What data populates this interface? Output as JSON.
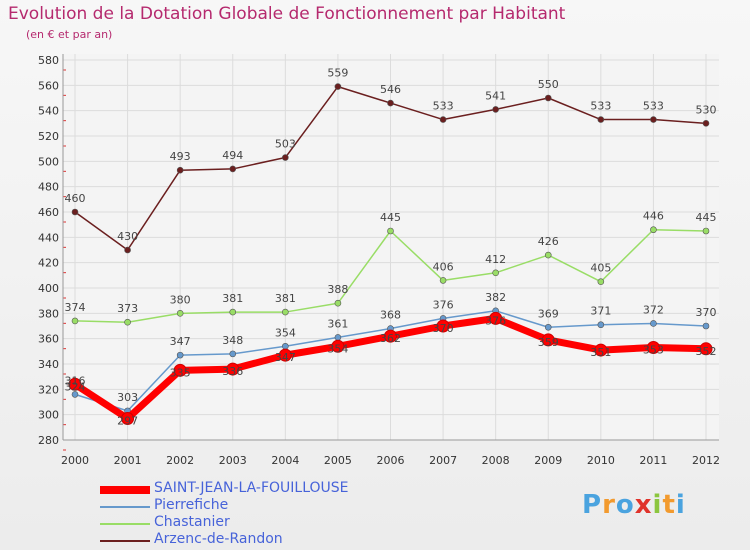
{
  "header": {
    "title": "Evolution de la Dotation Globale de Fonctionnement par Habitant",
    "subtitle": "(en € et par an)"
  },
  "logo": {
    "text": "Proxiti"
  },
  "chart_data": {
    "type": "line",
    "title": "Evolution de la Dotation Globale de Fonctionnement par Habitant",
    "subtitle": "(en € et par an)",
    "xlabel": "",
    "ylabel": "",
    "x": [
      "2000",
      "2001",
      "2002",
      "2003",
      "2004",
      "2005",
      "2006",
      "2007",
      "2008",
      "2009",
      "2010",
      "2011",
      "2012"
    ],
    "ylim": [
      280,
      580
    ],
    "yticks": [
      280,
      300,
      320,
      340,
      360,
      380,
      400,
      420,
      440,
      460,
      480,
      500,
      520,
      540,
      560,
      580
    ],
    "grid": true,
    "legend_position": "bottom-left",
    "series": [
      {
        "name": "SAINT-JEAN-LA-FOUILLOUSE",
        "color": "#ff0000",
        "values": [
          324,
          297,
          335,
          336,
          347,
          354,
          362,
          370,
          376,
          359,
          351,
          353,
          352
        ]
      },
      {
        "name": "Pierrefiche",
        "color": "#6699cc",
        "values": [
          316,
          303,
          347,
          348,
          354,
          361,
          368,
          376,
          382,
          369,
          371,
          372,
          370
        ]
      },
      {
        "name": "Chastanier",
        "color": "#99dd66",
        "values": [
          374,
          373,
          380,
          381,
          381,
          388,
          445,
          406,
          412,
          426,
          405,
          446,
          445
        ]
      },
      {
        "name": "Arzenc-de-Randon",
        "color": "#6b1f1f",
        "values": [
          460,
          430,
          493,
          494,
          503,
          559,
          546,
          533,
          541,
          550,
          533,
          533,
          530
        ]
      }
    ]
  }
}
